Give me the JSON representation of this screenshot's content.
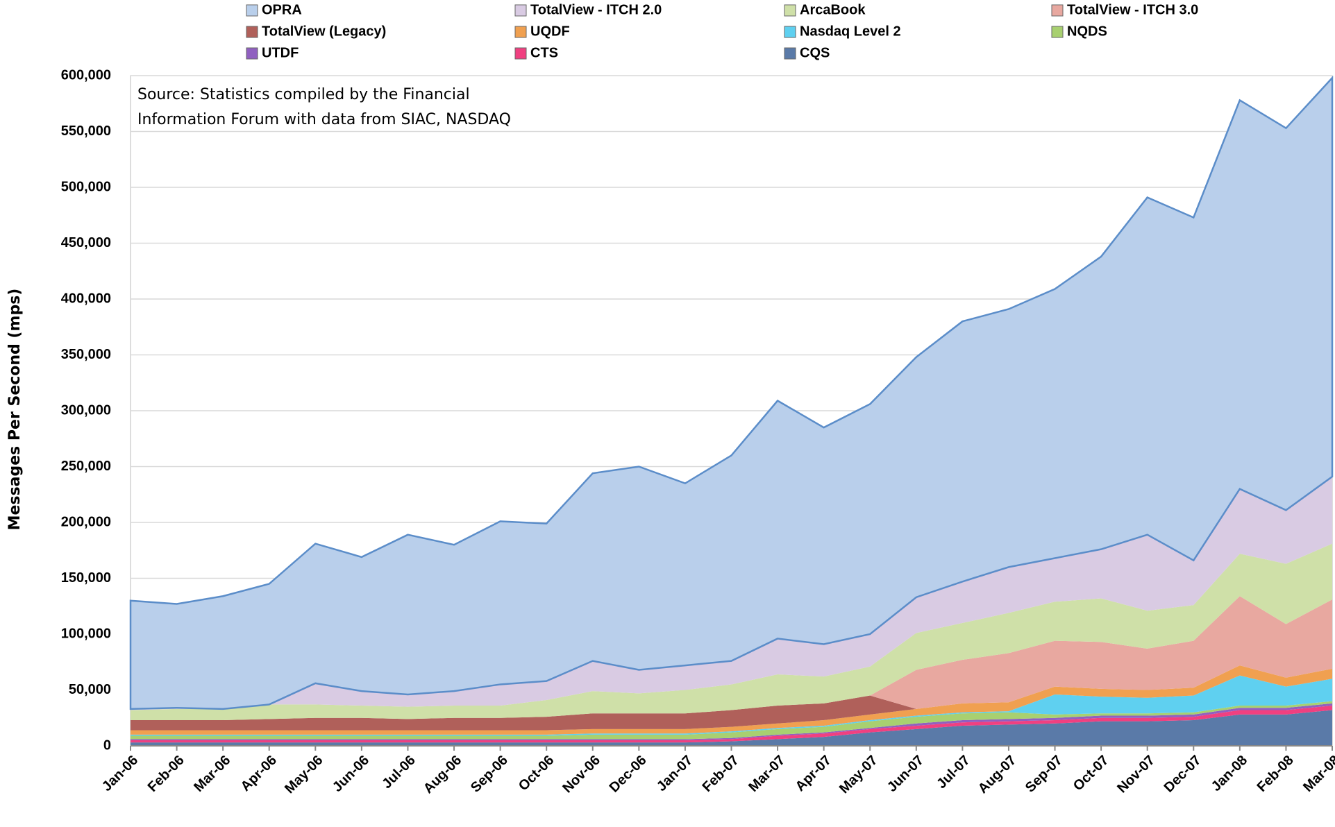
{
  "chart_data": {
    "type": "stacked_area",
    "y_label": "Messages Per Second (mps)",
    "annotation": [
      "Source: Statistics compiled by the Financial",
      "Information Forum with data from SIAC, NASDAQ"
    ],
    "categories": [
      "Jan-06",
      "Feb-06",
      "Mar-06",
      "Apr-06",
      "May-06",
      "Jun-06",
      "Jul-06",
      "Aug-06",
      "Sep-06",
      "Oct-06",
      "Nov-06",
      "Dec-06",
      "Jan-07",
      "Feb-07",
      "Mar-07",
      "Apr-07",
      "May-07",
      "Jun-07",
      "Jul-07",
      "Aug-07",
      "Sep-07",
      "Oct-07",
      "Nov-07",
      "Dec-07",
      "Jan-08",
      "Feb-08",
      "Mar-08"
    ],
    "ylim": [
      0,
      600000
    ],
    "yticks": [
      0,
      {
        "value": 50000,
        "label": "50,000"
      },
      {
        "value": 100000,
        "label": "100,000"
      },
      {
        "value": 150000,
        "label": "150,000"
      },
      {
        "value": 200000,
        "label": "200,000"
      },
      {
        "value": 250000,
        "label": "250,000"
      },
      {
        "value": 300000,
        "label": "300,000"
      },
      {
        "value": 350000,
        "label": "350,000"
      },
      {
        "value": 400000,
        "label": "400,000"
      },
      {
        "value": 450000,
        "label": "450,000"
      },
      {
        "value": 500000,
        "label": "500,000"
      },
      {
        "value": 550000,
        "label": "550,000"
      },
      {
        "value": 600000,
        "label": "600,000"
      }
    ],
    "grid": true,
    "legend": "top",
    "series": [
      {
        "name": "OPRA",
        "color": "#b9cfeb",
        "values": [
          97000,
          93000,
          101000,
          108000,
          125000,
          120000,
          143000,
          131000,
          146000,
          141000,
          168000,
          182000,
          163000,
          184000,
          213000,
          194000,
          206000,
          215000,
          233000,
          231000,
          241000,
          262000,
          302000,
          307000,
          348000,
          342000,
          357000
        ]
      },
      {
        "name": "TotalView - ITCH 2.0",
        "color": "#d9cbe3",
        "values": [
          1000,
          1000,
          0,
          0,
          19000,
          13000,
          11000,
          13000,
          19000,
          17000,
          27000,
          21000,
          22000,
          21000,
          32000,
          29000,
          29000,
          32000,
          37000,
          41000,
          39000,
          44000,
          68000,
          40000,
          58000,
          48000,
          60000
        ]
      },
      {
        "name": "ArcaBook",
        "color": "#cfe0a8",
        "values": [
          9000,
          10000,
          10000,
          13000,
          12000,
          11000,
          11000,
          11000,
          11000,
          15000,
          20000,
          18000,
          21000,
          23000,
          28000,
          24000,
          26000,
          33000,
          33000,
          36000,
          35000,
          39000,
          34000,
          32000,
          38000,
          54000,
          50000
        ]
      },
      {
        "name": "TotalView - ITCH 3.0",
        "color": "#e8a8a0",
        "values": [
          0,
          0,
          0,
          0,
          0,
          0,
          0,
          0,
          0,
          0,
          0,
          0,
          0,
          0,
          0,
          0,
          0,
          35000,
          39000,
          44000,
          41000,
          42000,
          37000,
          42000,
          62000,
          48000,
          62000
        ]
      },
      {
        "name": "TotalView (Legacy)",
        "color": "#b0605a",
        "values": [
          9000,
          9000,
          9000,
          10000,
          11000,
          11000,
          10000,
          11000,
          11000,
          12000,
          14000,
          14000,
          14000,
          15000,
          16000,
          15000,
          17000,
          0,
          0,
          0,
          0,
          0,
          0,
          0,
          0,
          0,
          0
        ]
      },
      {
        "name": "UQDF",
        "color": "#f0a050",
        "values": [
          4000,
          4000,
          4000,
          4000,
          4000,
          4000,
          4000,
          4000,
          4000,
          4000,
          4000,
          4000,
          4000,
          4000,
          4000,
          5000,
          5000,
          6000,
          8000,
          8000,
          7000,
          7000,
          7000,
          7000,
          9000,
          8000,
          9000
        ]
      },
      {
        "name": "Nasdaq Level 2",
        "color": "#5fd0f0",
        "values": [
          1000,
          1000,
          1000,
          1000,
          1000,
          1000,
          1000,
          1000,
          1000,
          1000,
          1000,
          1000,
          1000,
          1000,
          1000,
          1000,
          1000,
          1000,
          1000,
          1000,
          18000,
          15000,
          14000,
          15000,
          27000,
          17000,
          20000
        ]
      },
      {
        "name": "NQDS",
        "color": "#a8d070",
        "values": [
          3000,
          3000,
          3000,
          3000,
          3000,
          3000,
          3000,
          3000,
          3000,
          3000,
          4000,
          4000,
          4000,
          5000,
          5000,
          5000,
          6000,
          6000,
          6000,
          6000,
          3000,
          2000,
          2000,
          2000,
          2000,
          2000,
          2000
        ]
      },
      {
        "name": "UTDF",
        "color": "#9060c0",
        "values": [
          1000,
          1000,
          1000,
          1000,
          1000,
          1000,
          1000,
          1000,
          1000,
          1000,
          1000,
          1000,
          1000,
          1000,
          1000,
          1000,
          1000,
          2000,
          2000,
          2000,
          2000,
          2000,
          2000,
          2000,
          2000,
          2000,
          2000
        ]
      },
      {
        "name": "CTS",
        "color": "#f04080",
        "values": [
          2000,
          2000,
          2000,
          2000,
          2000,
          2000,
          2000,
          2000,
          2000,
          2000,
          2000,
          2000,
          2000,
          2000,
          3000,
          3000,
          3000,
          3000,
          3000,
          3000,
          3000,
          3000,
          3000,
          3000,
          4000,
          4000,
          4000
        ]
      },
      {
        "name": "CQS",
        "color": "#5a7aa8",
        "values": [
          3000,
          3000,
          3000,
          3000,
          3000,
          3000,
          3000,
          3000,
          3000,
          3000,
          3000,
          3000,
          3000,
          4000,
          6000,
          8000,
          12000,
          15000,
          18000,
          19000,
          20000,
          22000,
          22000,
          23000,
          28000,
          28000,
          32000
        ]
      }
    ]
  }
}
